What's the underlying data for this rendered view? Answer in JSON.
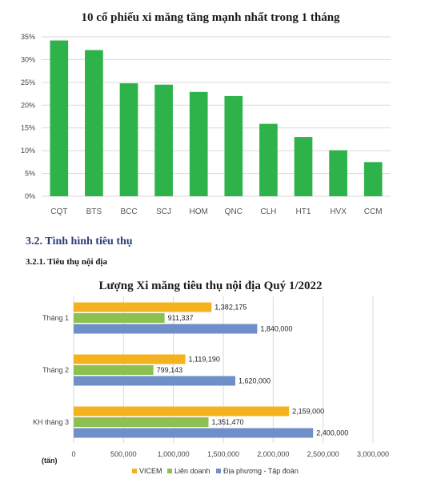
{
  "chart_data": [
    {
      "type": "bar",
      "title": "10 cổ phiếu xi măng tăng mạnh nhất trong 1 tháng",
      "categories": [
        "CQT",
        "BTS",
        "BCC",
        "SCJ",
        "HOM",
        "QNC",
        "CLH",
        "HT1",
        "HVX",
        "CCM"
      ],
      "values": [
        34.2,
        32.1,
        24.8,
        24.5,
        22.9,
        22.0,
        15.9,
        13.0,
        10.1,
        7.5
      ],
      "ylim": [
        0,
        35
      ],
      "yticks": [
        "0%",
        "5%",
        "10%",
        "15%",
        "20%",
        "25%",
        "30%",
        "35%"
      ],
      "grid": true,
      "bar_color": "#2db34a"
    },
    {
      "type": "bar",
      "orientation": "horizontal",
      "title": "Lượng Xi măng tiêu thụ nội địa Quý 1/2022",
      "categories": [
        "Tháng 1",
        "Tháng 2",
        "KH tháng 3"
      ],
      "series": [
        {
          "name": "VICEM",
          "values": [
            1382175,
            1119190,
            2159000
          ],
          "labels": [
            "1,382,175",
            "1,119,190",
            "2,159,000"
          ],
          "color": "#f5b21f"
        },
        {
          "name": "Liên doanh",
          "values": [
            911337,
            799143,
            1351470
          ],
          "labels": [
            "911,337",
            "799,143",
            "1,351,470"
          ],
          "color": "#8cc152"
        },
        {
          "name": "Địa phương - Tập đoàn",
          "values": [
            1840000,
            1620000,
            2400000
          ],
          "labels": [
            "1,840,000",
            "1,620,000",
            "2,400,000"
          ],
          "color": "#6f8fc9"
        }
      ],
      "xlim": [
        0,
        3000000
      ],
      "xticks": [
        "0",
        "500,000",
        "1,000,000",
        "1,500,000",
        "2,000,000",
        "2,500,000",
        "3,000,000"
      ],
      "unit_label": "(tấn)",
      "grid": true,
      "legend": "bottom"
    }
  ],
  "text": {
    "section_heading": "3.2. Tình hình tiêu thụ",
    "subsection_heading": "3.2.1. Tiêu thụ nội địa"
  }
}
